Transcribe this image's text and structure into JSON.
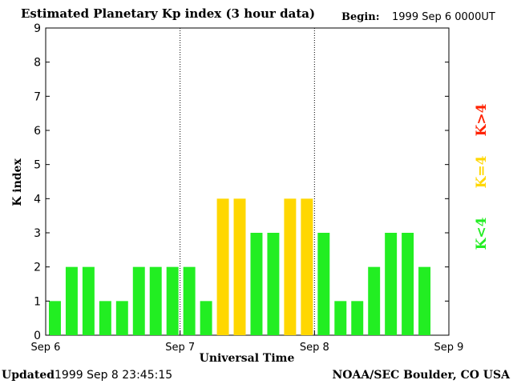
{
  "header": {
    "title": "Estimated Planetary Kp index (3 hour data)",
    "begin_label": "Begin:",
    "begin_value": "1999 Sep 6 0000UT"
  },
  "footer": {
    "updated_label": "Updated",
    "updated_value": "1999 Sep  8 23:45:15",
    "credit": "NOAA/SEC Boulder, CO USA"
  },
  "legend": [
    {
      "label": "K<4",
      "color": "#22ee22"
    },
    {
      "label": "K=4",
      "color": "#ffd700"
    },
    {
      "label": "K>4",
      "color": "#ff2200"
    }
  ],
  "colors": {
    "low": "#22ee22",
    "mid": "#ffd700",
    "high": "#ff2200"
  },
  "chart_data": {
    "type": "bar",
    "title": "Estimated Planetary Kp index (3 hour data)",
    "xlabel": "Universal Time",
    "ylabel": "K index",
    "ylim": [
      0,
      9
    ],
    "yticks": [
      0,
      1,
      2,
      3,
      4,
      5,
      6,
      7,
      8,
      9
    ],
    "xticks": [
      "Sep 6",
      "Sep 7",
      "Sep 8",
      "Sep 9"
    ],
    "bins_per_day": 8,
    "days": 3,
    "values": [
      1,
      2,
      2,
      1,
      1,
      2,
      2,
      2,
      2,
      1,
      4,
      4,
      3,
      3,
      4,
      4,
      3,
      1,
      1,
      2,
      3,
      3,
      2
    ],
    "day_separators": [
      "Sep 7",
      "Sep 8"
    ],
    "grid": false
  }
}
